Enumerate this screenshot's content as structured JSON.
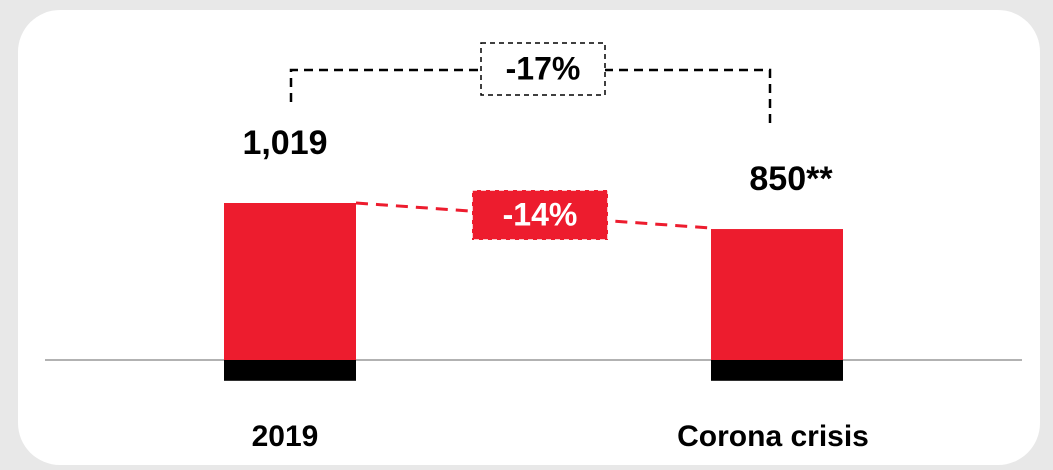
{
  "chart_data": {
    "type": "bar",
    "categories": [
      "2019",
      "Corona crisis"
    ],
    "series": [
      {
        "color": "#ed1c2e",
        "values": [
          1019,
          850
        ],
        "value_labels": [
          "1,019",
          "850**"
        ]
      },
      {
        "color": "#000000",
        "values": [
          -135,
          -135
        ]
      }
    ],
    "annotations": [
      "-17%",
      "-14%"
    ]
  }
}
